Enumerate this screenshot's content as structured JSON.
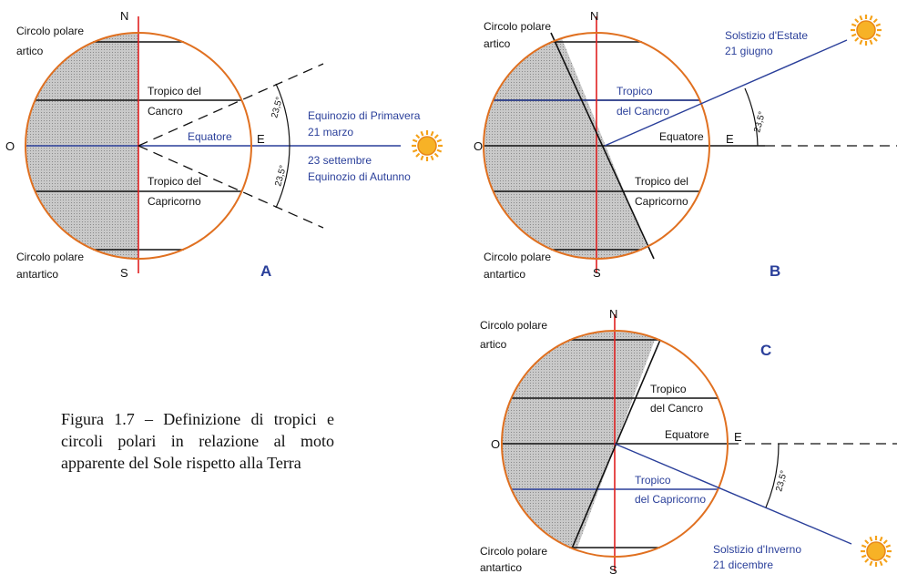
{
  "caption": "Figura 1.7 – Definizione di tropici e circoli polari in relazione al moto apparente del Sole rispetto alla Terra",
  "colors": {
    "orbit": "#e07020",
    "axis": "#e02020",
    "blue": "#2a3f9a",
    "shade": "#bdbdbd",
    "sun": "#f5a21a"
  },
  "compass": {
    "n": "N",
    "s": "S",
    "o": "O",
    "e": "E"
  },
  "angle_label": "23,5°",
  "panels": {
    "a": {
      "letter": "A",
      "artic": [
        "Circolo polare",
        "artico"
      ],
      "antartic": [
        "Circolo polare",
        "antartico"
      ],
      "cancer": [
        "Tropico del",
        "Cancro"
      ],
      "capricorn": [
        "Tropico del",
        "Capricorno"
      ],
      "equator": "Equatore",
      "spring": [
        "Equinozio di Primavera",
        "21 marzo"
      ],
      "autumn": [
        "23 settembre",
        "Equinozio di Autunno"
      ]
    },
    "b": {
      "letter": "B",
      "artic": [
        "Circolo polare",
        "artico"
      ],
      "antartic": [
        "Circolo polare",
        "antartico"
      ],
      "cancer": [
        "Tropico",
        "del Cancro"
      ],
      "capricorn": [
        "Tropico del",
        "Capricorno"
      ],
      "equator": "Equatore",
      "solstice": [
        "Solstizio d'Estate",
        "21 giugno"
      ]
    },
    "c": {
      "letter": "C",
      "artic": [
        "Circolo polare",
        "artico"
      ],
      "antartic": [
        "Circolo polare",
        "antartico"
      ],
      "cancer": [
        "Tropico",
        "del Cancro"
      ],
      "capricorn": [
        "Tropico",
        "del Capricorno"
      ],
      "equator": "Equatore",
      "solstice": [
        "Solstizio d'Inverno",
        "21 dicembre"
      ]
    }
  }
}
